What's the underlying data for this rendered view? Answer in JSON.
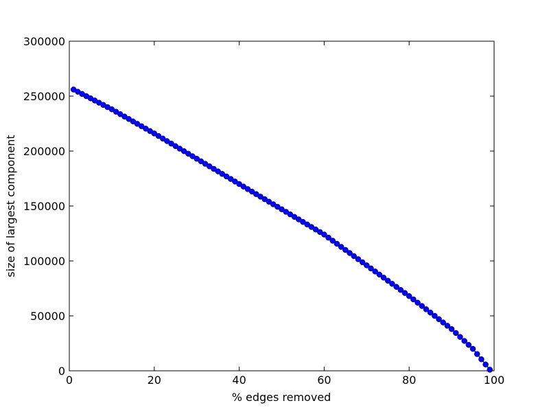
{
  "chart_data": {
    "type": "line",
    "xlabel": "% edges removed",
    "ylabel": "size of largest component",
    "x": [
      1,
      2,
      3,
      4,
      5,
      6,
      7,
      8,
      9,
      10,
      11,
      12,
      13,
      14,
      15,
      16,
      17,
      18,
      19,
      20,
      21,
      22,
      23,
      24,
      25,
      26,
      27,
      28,
      29,
      30,
      31,
      32,
      33,
      34,
      35,
      36,
      37,
      38,
      39,
      40,
      41,
      42,
      43,
      44,
      45,
      46,
      47,
      48,
      49,
      50,
      51,
      52,
      53,
      54,
      55,
      56,
      57,
      58,
      59,
      60,
      61,
      62,
      63,
      64,
      65,
      66,
      67,
      68,
      69,
      70,
      71,
      72,
      73,
      74,
      75,
      76,
      77,
      78,
      79,
      80,
      81,
      82,
      83,
      84,
      85,
      86,
      87,
      88,
      89,
      90,
      91,
      92,
      93,
      94,
      95,
      96,
      97,
      98,
      99
    ],
    "series": [
      {
        "color": "#0000ff",
        "values": [
          256000,
          254000,
          252000,
          250000,
          248000,
          246000,
          244000,
          242000,
          240000,
          238000,
          235800,
          233600,
          231400,
          229200,
          227000,
          224800,
          222600,
          220400,
          218200,
          216000,
          213700,
          211400,
          209100,
          206800,
          204500,
          202200,
          199900,
          197600,
          195300,
          193000,
          190700,
          188400,
          186100,
          183800,
          181500,
          179200,
          176900,
          174600,
          172300,
          170000,
          167700,
          165400,
          163100,
          160800,
          158500,
          156200,
          153900,
          151600,
          149300,
          147000,
          144700,
          142400,
          140100,
          137800,
          135500,
          133200,
          130900,
          128600,
          126300,
          124000,
          121200,
          118400,
          115600,
          112800,
          110000,
          107200,
          104400,
          101600,
          98800,
          96000,
          93200,
          90400,
          87600,
          84800,
          82000,
          79200,
          76400,
          73600,
          70800,
          68000,
          65000,
          62000,
          59000,
          56000,
          53000,
          50000,
          47000,
          44000,
          41000,
          38000,
          34400,
          30800,
          27200,
          23600,
          20000,
          15250,
          10500,
          5750,
          1000
        ]
      }
    ],
    "xlim": [
      0,
      100
    ],
    "xticks": [
      0,
      20,
      40,
      60,
      80,
      100
    ],
    "ylim": [
      0,
      300000
    ],
    "yticks": [
      0,
      50000,
      100000,
      150000,
      200000,
      250000,
      300000
    ]
  }
}
